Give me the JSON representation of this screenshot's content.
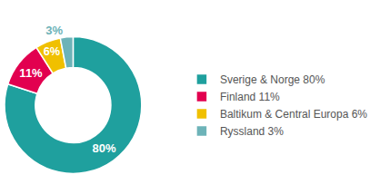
{
  "chart_data": {
    "type": "donut",
    "categories": [
      "Sverige & Norge 80%",
      "Finland 11%",
      "Baltikum & Central Europa 6%",
      "Ryssland 3%"
    ],
    "values": [
      80,
      11,
      6,
      3
    ],
    "value_labels": [
      "80%",
      "11%",
      "6%",
      "3%"
    ],
    "colors": [
      "#1fa09e",
      "#e2004f",
      "#f0c000",
      "#6db3b8"
    ],
    "data_labels": true,
    "legend": "right"
  }
}
